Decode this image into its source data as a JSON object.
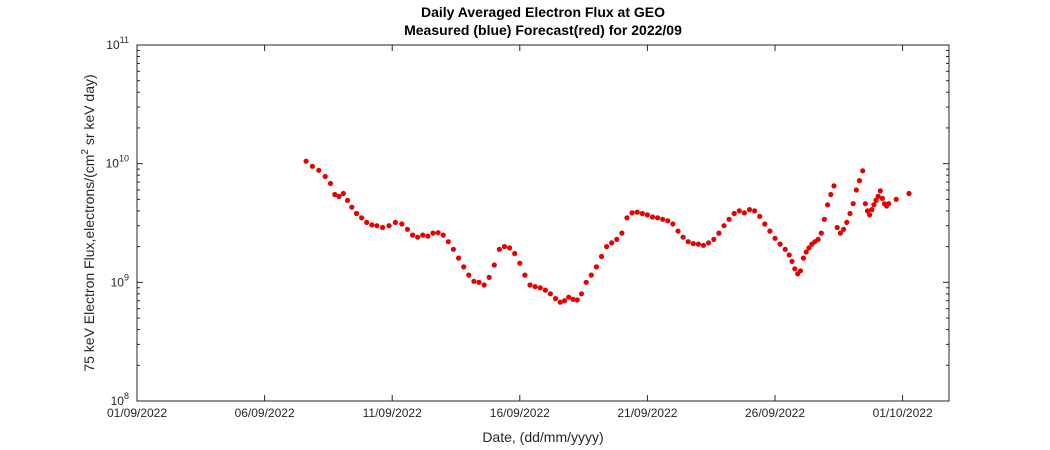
{
  "chart_data": {
    "type": "scatter",
    "title": "Daily Averaged Electron Flux at GEO",
    "subtitle": "Measured (blue) Forecast(red) for 2022/09",
    "xlabel": "Date, (dd/mm/yyyy)",
    "ylabel": "75 keV Electron Flux,electrons/(cm",
    "ylabel_sup": "2",
    "ylabel_tail": " sr keV day)",
    "yscale": "log",
    "xlim": [
      "01/09/2022",
      "02/10/2022"
    ],
    "ylim": [
      100000000.0,
      100000000000.0
    ],
    "x_ticks": [
      "01/09/2022",
      "06/09/2022",
      "11/09/2022",
      "16/09/2022",
      "21/09/2022",
      "26/09/2022",
      "01/10/2022"
    ],
    "y_ticks": [
      {
        "base": "10",
        "exp": "8"
      },
      {
        "base": "10",
        "exp": "9"
      },
      {
        "base": "10",
        "exp": "10"
      },
      {
        "base": "10",
        "exp": "11"
      }
    ],
    "grid": false,
    "colors": {
      "forecast": "#e60000",
      "axis": "#262626"
    },
    "series": [
      {
        "color": "#e60000",
        "points": [
          [
            "08/09/2022",
            10500000000.0
          ],
          [
            "08/09/2022",
            9500000000.0
          ],
          [
            "08/09/2022",
            8800000000.0
          ],
          [
            "08/09/2022",
            7800000000.0
          ],
          [
            "09/09/2022",
            6800000000.0
          ],
          [
            "09/09/2022",
            5500000000.0
          ],
          [
            "09/09/2022",
            5300000000.0
          ],
          [
            "09/09/2022",
            5600000000.0
          ],
          [
            "09/09/2022",
            4900000000.0
          ],
          [
            "09/09/2022",
            4300000000.0
          ],
          [
            "10/09/2022",
            3800000000.0
          ],
          [
            "10/09/2022",
            3500000000.0
          ],
          [
            "10/09/2022",
            3200000000.0
          ],
          [
            "10/09/2022",
            3050000000.0
          ],
          [
            "10/09/2022",
            3000000000.0
          ],
          [
            "11/09/2022",
            2900000000.0
          ],
          [
            "11/09/2022",
            3000000000.0
          ],
          [
            "11/09/2022",
            3200000000.0
          ],
          [
            "11/09/2022",
            3100000000.0
          ],
          [
            "12/09/2022",
            2800000000.0
          ],
          [
            "12/09/2022",
            2500000000.0
          ],
          [
            "12/09/2022",
            2400000000.0
          ],
          [
            "12/09/2022",
            2500000000.0
          ],
          [
            "12/09/2022",
            2450000000.0
          ],
          [
            "13/09/2022",
            2600000000.0
          ],
          [
            "13/09/2022",
            2620000000.0
          ],
          [
            "13/09/2022",
            2500000000.0
          ],
          [
            "13/09/2022",
            2200000000.0
          ],
          [
            "13/09/2022",
            1900000000.0
          ],
          [
            "14/09/2022",
            1600000000.0
          ],
          [
            "14/09/2022",
            1350000000.0
          ],
          [
            "14/09/2022",
            1150000000.0
          ],
          [
            "14/09/2022",
            1020000000.0
          ],
          [
            "14/09/2022",
            1000000000.0
          ],
          [
            "15/09/2022",
            950000000.0
          ],
          [
            "15/09/2022",
            1100000000.0
          ],
          [
            "15/09/2022",
            1400000000.0
          ],
          [
            "15/09/2022",
            1900000000.0
          ],
          [
            "15/09/2022",
            2000000000.0
          ],
          [
            "16/09/2022",
            1950000000.0
          ],
          [
            "16/09/2022",
            1750000000.0
          ],
          [
            "16/09/2022",
            1450000000.0
          ],
          [
            "16/09/2022",
            1150000000.0
          ],
          [
            "16/09/2022",
            950000000.0
          ],
          [
            "17/09/2022",
            920000000.0
          ],
          [
            "17/09/2022",
            900000000.0
          ],
          [
            "17/09/2022",
            860000000.0
          ],
          [
            "17/09/2022",
            800000000.0
          ],
          [
            "17/09/2022",
            730000000.0
          ],
          [
            "18/09/2022",
            680000000.0
          ],
          [
            "18/09/2022",
            700000000.0
          ],
          [
            "18/09/2022",
            750000000.0
          ],
          [
            "18/09/2022",
            720000000.0
          ],
          [
            "18/09/2022",
            710000000.0
          ],
          [
            "18/09/2022",
            800000000.0
          ],
          [
            "19/09/2022",
            1000000000.0
          ],
          [
            "19/09/2022",
            1150000000.0
          ],
          [
            "19/09/2022",
            1350000000.0
          ],
          [
            "19/09/2022",
            1650000000.0
          ],
          [
            "19/09/2022",
            2000000000.0
          ],
          [
            "20/09/2022",
            2150000000.0
          ],
          [
            "20/09/2022",
            2300000000.0
          ],
          [
            "20/09/2022",
            2600000000.0
          ],
          [
            "20/09/2022",
            3500000000.0
          ],
          [
            "20/09/2022",
            3850000000.0
          ],
          [
            "21/09/2022",
            3900000000.0
          ],
          [
            "21/09/2022",
            3800000000.0
          ],
          [
            "21/09/2022",
            3700000000.0
          ],
          [
            "21/09/2022",
            3550000000.0
          ],
          [
            "21/09/2022",
            3500000000.0
          ],
          [
            "22/09/2022",
            3400000000.0
          ],
          [
            "22/09/2022",
            3300000000.0
          ],
          [
            "22/09/2022",
            3100000000.0
          ],
          [
            "22/09/2022",
            2700000000.0
          ],
          [
            "22/09/2022",
            2400000000.0
          ],
          [
            "23/09/2022",
            2200000000.0
          ],
          [
            "23/09/2022",
            2120000000.0
          ],
          [
            "23/09/2022",
            2100000000.0
          ],
          [
            "23/09/2022",
            2050000000.0
          ],
          [
            "23/09/2022",
            2150000000.0
          ],
          [
            "24/09/2022",
            2300000000.0
          ],
          [
            "24/09/2022",
            2600000000.0
          ],
          [
            "24/09/2022",
            3000000000.0
          ],
          [
            "24/09/2022",
            3400000000.0
          ],
          [
            "24/09/2022",
            3800000000.0
          ],
          [
            "25/09/2022",
            4000000000.0
          ],
          [
            "25/09/2022",
            3850000000.0
          ],
          [
            "25/09/2022",
            4100000000.0
          ],
          [
            "25/09/2022",
            4000000000.0
          ],
          [
            "25/09/2022",
            3600000000.0
          ],
          [
            "26/09/2022",
            3100000000.0
          ],
          [
            "26/09/2022",
            2700000000.0
          ],
          [
            "26/09/2022",
            2350000000.0
          ],
          [
            "26/09/2022",
            2100000000.0
          ],
          [
            "26/09/2022",
            1900000000.0
          ],
          [
            "27/09/2022",
            1700000000.0
          ],
          [
            "27/09/2022",
            1500000000.0
          ],
          [
            "27/09/2022",
            1300000000.0
          ],
          [
            "27/09/2022",
            1180000000.0
          ],
          [
            "27/09/2022",
            1250000000.0
          ],
          [
            "27/09/2022",
            1600000000.0
          ],
          [
            "27/09/2022",
            1800000000.0
          ],
          [
            "27/09/2022",
            1950000000.0
          ],
          [
            "27/09/2022",
            2100000000.0
          ],
          [
            "28/09/2022",
            2200000000.0
          ],
          [
            "28/09/2022",
            2300000000.0
          ],
          [
            "28/09/2022",
            2600000000.0
          ],
          [
            "28/09/2022",
            3400000000.0
          ],
          [
            "28/09/2022",
            4500000000.0
          ],
          [
            "28/09/2022",
            5500000000.0
          ],
          [
            "28/09/2022",
            6500000000.0
          ],
          [
            "28/09/2022",
            2900000000.0
          ],
          [
            "29/09/2022",
            2600000000.0
          ],
          [
            "29/09/2022",
            2800000000.0
          ],
          [
            "29/09/2022",
            3200000000.0
          ],
          [
            "29/09/2022",
            3800000000.0
          ],
          [
            "29/09/2022",
            4600000000.0
          ],
          [
            "29/09/2022",
            6000000000.0
          ],
          [
            "29/09/2022",
            7200000000.0
          ],
          [
            "29/09/2022",
            8700000000.0
          ],
          [
            "30/09/2022",
            4600000000.0
          ],
          [
            "30/09/2022",
            4000000000.0
          ],
          [
            "30/09/2022",
            3700000000.0
          ],
          [
            "30/09/2022",
            4100000000.0
          ],
          [
            "30/09/2022",
            4500000000.0
          ],
          [
            "30/09/2022",
            4900000000.0
          ],
          [
            "30/09/2022",
            5300000000.0
          ],
          [
            "30/09/2022",
            5900000000.0
          ],
          [
            "30/09/2022",
            5100000000.0
          ],
          [
            "30/09/2022",
            4600000000.0
          ],
          [
            "30/09/2022",
            4400000000.0
          ],
          [
            "30/09/2022",
            4600000000.0
          ],
          [
            "01/10/2022",
            5000000000.0
          ],
          [
            "01/10/2022",
            5600000000.0
          ]
        ]
      }
    ]
  }
}
